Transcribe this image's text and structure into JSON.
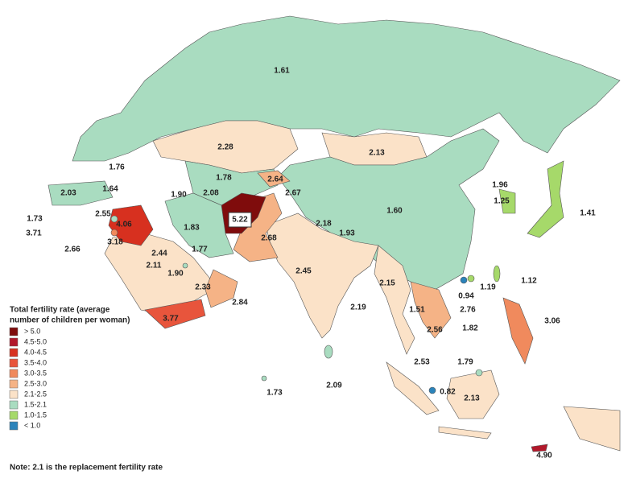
{
  "labels": [
    "1.61",
    "2.28",
    "2.13",
    "1.76",
    "1.78",
    "2.64",
    "1.64",
    "1.90",
    "2.08",
    "2.67",
    "2.03",
    "1.96",
    "1.25",
    "1.41",
    "1.73",
    "2.55",
    "4.06",
    "5.22",
    "1.83",
    "1.60",
    "2.18",
    "1.93",
    "3.71",
    "3.18",
    "2.66",
    "2.68",
    "2.44",
    "1.77",
    "2.11",
    "1.90",
    "2.45",
    "2.15",
    "1.19",
    "1.12",
    "0.94",
    "2.33",
    "2.19",
    "2.76",
    "2.84",
    "1.51",
    "3.77",
    "2.56",
    "1.82",
    "3.06",
    "2.53",
    "1.79",
    "2.09",
    "1.73",
    "0.82",
    "2.13",
    "4.90"
  ],
  "legend": {
    "title": [
      "Total fertility rate (average",
      "number of children per woman)"
    ],
    "items": [
      {
        "label": "> 5.0",
        "color": "#7f0c0c"
      },
      {
        "label": "4.5-5.0",
        "color": "#b2182b"
      },
      {
        "label": "4.0-4.5",
        "color": "#d7301f"
      },
      {
        "label": "3.5-4.0",
        "color": "#e8553c"
      },
      {
        "label": "3.0-3.5",
        "color": "#f08a5d"
      },
      {
        "label": "2.5-3.0",
        "color": "#f5b386"
      },
      {
        "label": "2.1-2.5",
        "color": "#fbe2c8"
      },
      {
        "label": "1.5-2.1",
        "color": "#a9dcc0"
      },
      {
        "label": "1.0-1.5",
        "color": "#a6d96a"
      },
      {
        "label": "< 1.0",
        "color": "#2b83ba"
      }
    ]
  },
  "note": "Note: 2.1 is the replacement fertility rate"
}
